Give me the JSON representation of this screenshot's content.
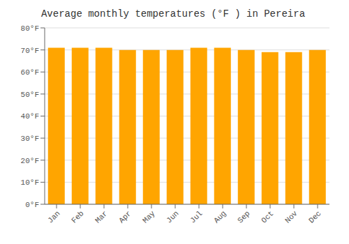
{
  "chart_data": {
    "type": "bar",
    "title": "Average monthly temperatures (°F ) in Pereira",
    "categories": [
      "Jan",
      "Feb",
      "Mar",
      "Apr",
      "May",
      "Jun",
      "Jul",
      "Aug",
      "Sep",
      "Oct",
      "Nov",
      "Dec"
    ],
    "values": [
      71,
      71,
      71,
      70,
      70,
      70,
      71,
      71,
      70,
      69,
      69,
      70
    ],
    "color": "#FFA500",
    "ylim": [
      0,
      80
    ],
    "yticks": [
      {
        "value": 0,
        "label": "0°F"
      },
      {
        "value": 10,
        "label": "10°F"
      },
      {
        "value": 20,
        "label": "20°F"
      },
      {
        "value": 30,
        "label": "30°F"
      },
      {
        "value": 40,
        "label": "40°F"
      },
      {
        "value": 50,
        "label": "50°F"
      },
      {
        "value": 60,
        "label": "60°F"
      },
      {
        "value": 70,
        "label": "70°F"
      },
      {
        "value": 80,
        "label": "80°F"
      }
    ],
    "grid": true
  }
}
